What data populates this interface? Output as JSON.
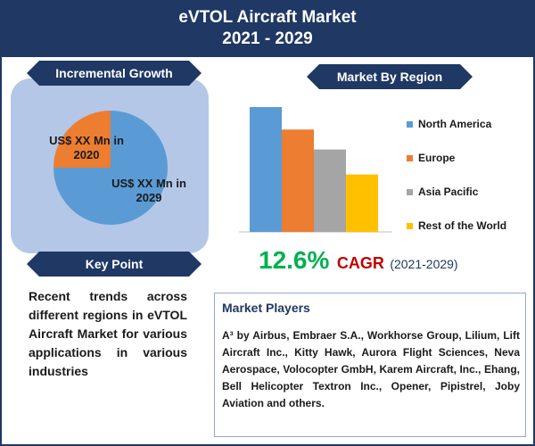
{
  "header": {
    "title_line1": "eVTOL Aircraft Market",
    "title_line2": "2021 - 2029"
  },
  "incremental_growth": {
    "title": "Incremental Growth",
    "label_2020": "US$ XX Mn in 2020",
    "label_2029": "US$ XX Mn in 2029"
  },
  "key_point": {
    "title": "Key Point",
    "text": "Recent trends across different regions in eVTOL Aircraft Market for various applications in various industries"
  },
  "region": {
    "title": "Market By Region"
  },
  "cagr": {
    "value": "12.6%",
    "label": "CAGR",
    "period": "(2021-2029)"
  },
  "players": {
    "title": "Market Players",
    "text": "A³ by Airbus, Embraer S.A., Workhorse Group, Lilium, Lift Aircraft Inc., Kitty Hawk, Aurora Flight Sciences, Neva Aerospace, Volocopter GmbH, Karem Aircraft, Inc., Ehang, Bell Helicopter Textron Inc., Opener, Pipistrel, Joby Aviation and others."
  },
  "colors": {
    "navy": "#1f3864",
    "panel": "#b4c7e7",
    "pie_2029": "#5b9bd5",
    "pie_2020": "#ed7d31"
  },
  "chart_data": [
    {
      "type": "pie",
      "title": "Incremental Growth",
      "categories": [
        "2020",
        "2029"
      ],
      "values": [
        25,
        75
      ],
      "colors": [
        "#ed7d31",
        "#5b9bd5"
      ]
    },
    {
      "type": "bar",
      "title": "Market By Region",
      "categories": [
        "North America",
        "Europe",
        "Asia Pacific",
        "Rest of the World"
      ],
      "values": [
        100,
        82,
        66,
        46
      ],
      "colors": [
        "#5b9bd5",
        "#ed7d31",
        "#a5a5a5",
        "#ffc000"
      ],
      "legend": "right",
      "grid": false
    }
  ]
}
